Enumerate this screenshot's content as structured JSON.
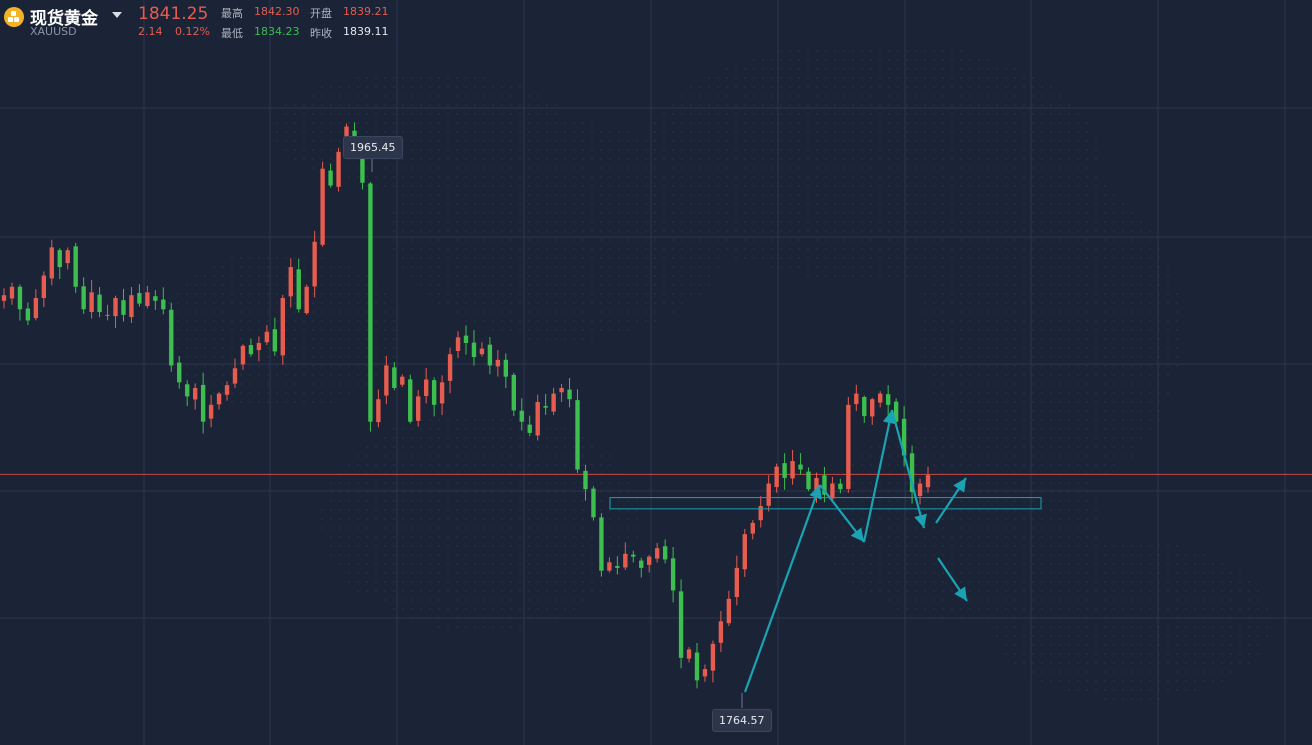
{
  "header": {
    "name": "现货黄金",
    "symbol": "XAUUSD",
    "price": "1841.25",
    "change": "2.14",
    "change_pct": "0.12%",
    "high_label": "最高",
    "high": "1842.30",
    "open_label": "开盘",
    "open": "1839.21",
    "low_label": "最低",
    "low": "1834.23",
    "prev_close_label": "昨收",
    "prev_close": "1839.11"
  },
  "chart_data": {
    "type": "candlestick",
    "y_range": [
      1745,
      2010
    ],
    "max_label": "1965.45",
    "min_label": "1764.57",
    "current_price_line": 1841.25,
    "support_zone": [
      1829,
      1833
    ],
    "grid": true,
    "colors": {
      "up": "#e65c4f",
      "down": "#3cbf4e",
      "annotation": "#19a3b3",
      "current": "#c74a44"
    },
    "close_path": [
      1905,
      1908,
      1900,
      1896,
      1904,
      1912,
      1922,
      1915,
      1921,
      1908,
      1900,
      1906,
      1899,
      1898,
      1904,
      1898,
      1905,
      1902,
      1906,
      1903,
      1900,
      1880,
      1874,
      1869,
      1872,
      1860,
      1866,
      1870,
      1873,
      1879,
      1887,
      1884,
      1888,
      1892,
      1885,
      1904,
      1915,
      1900,
      1908,
      1924,
      1950,
      1944,
      1956,
      1965,
      1960,
      1945,
      1860,
      1868,
      1880,
      1872,
      1876,
      1860,
      1869,
      1875,
      1866,
      1874,
      1884,
      1890,
      1888,
      1883,
      1886,
      1880,
      1882,
      1876,
      1864,
      1860,
      1856,
      1867,
      1865,
      1870,
      1872,
      1868,
      1843,
      1836,
      1826,
      1807,
      1810,
      1808,
      1813,
      1812,
      1808,
      1812,
      1815,
      1811,
      1800,
      1776,
      1779,
      1768,
      1772,
      1781,
      1789,
      1797,
      1808,
      1820,
      1824,
      1830,
      1838,
      1844,
      1840,
      1846,
      1843,
      1836,
      1840,
      1834,
      1838,
      1836,
      1866,
      1870,
      1862,
      1868,
      1870,
      1866,
      1860,
      1848,
      1835,
      1838,
      1841
    ]
  }
}
